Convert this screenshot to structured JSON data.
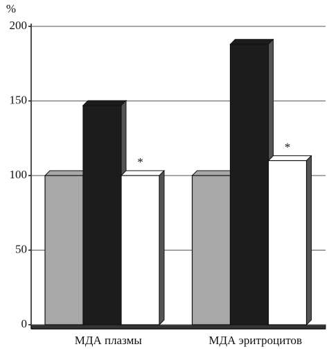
{
  "chart_data": {
    "type": "bar3d",
    "ylabel": "%",
    "categories": [
      "МДА плазмы",
      "МДА эритроцитов"
    ],
    "series": [
      {
        "color": "#a8a8a8",
        "values": [
          100,
          100
        ]
      },
      {
        "color": "#1c1c1c",
        "values": [
          147,
          188
        ]
      },
      {
        "color": "#ffffff",
        "values": [
          100,
          110
        ],
        "annotations": [
          "*",
          "*"
        ]
      }
    ],
    "ylim": [
      0,
      200
    ],
    "yticks": [
      0,
      50,
      100,
      150,
      200
    ],
    "grid": true
  }
}
